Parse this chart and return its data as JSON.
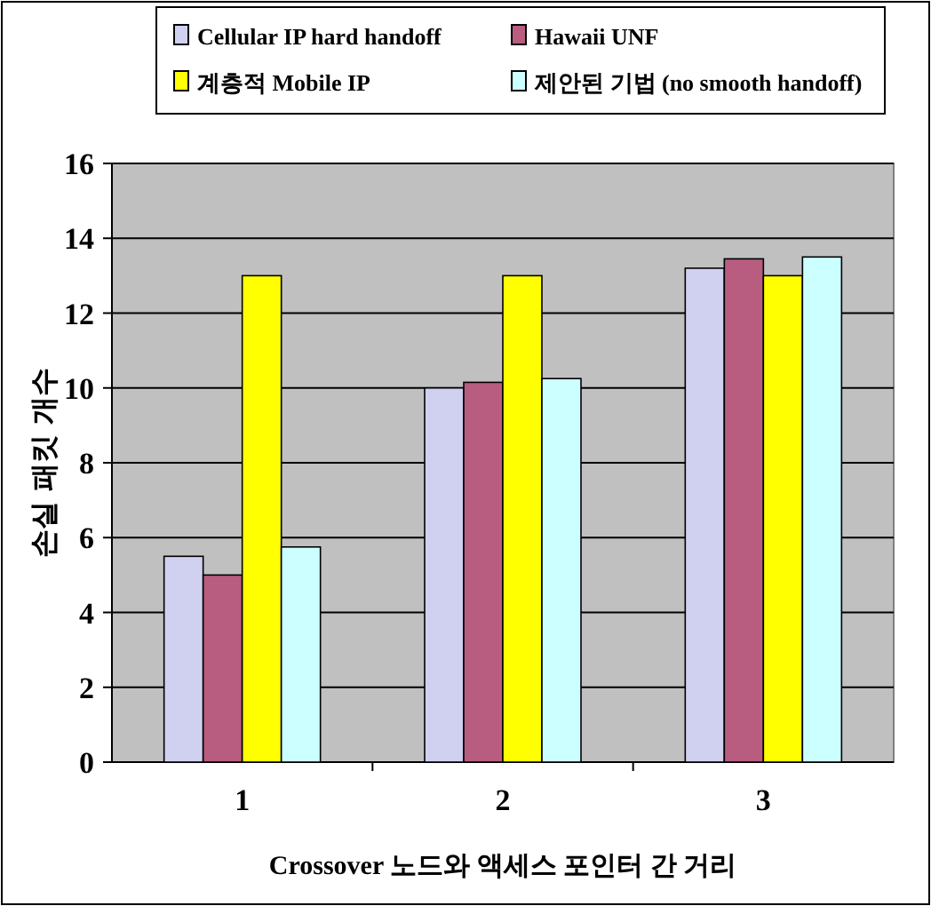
{
  "chart_data": {
    "type": "bar",
    "xlabel": "Crossover 노드와 액세스 포인터 간 거리",
    "ylabel": "손실 패킷 개수",
    "categories": [
      "1",
      "2",
      "3"
    ],
    "series": [
      {
        "name": "Cellular IP hard handoff",
        "color": "#d0d0f0",
        "values": [
          5.5,
          10.0,
          13.2
        ]
      },
      {
        "name": "Hawaii UNF",
        "color": "#b85c80",
        "values": [
          5.0,
          10.15,
          13.45
        ]
      },
      {
        "name": "계층적 Mobile IP",
        "color": "#ffff00",
        "values": [
          13.0,
          13.0,
          13.0
        ]
      },
      {
        "name": "제안된 기법 (no smooth handoff)",
        "color": "#ccffff",
        "values": [
          5.75,
          10.25,
          13.5
        ]
      }
    ],
    "ylim": [
      0,
      16
    ],
    "yticks": [
      0,
      2,
      4,
      6,
      8,
      10,
      12,
      14,
      16
    ],
    "grid": "y",
    "legend": "top"
  }
}
